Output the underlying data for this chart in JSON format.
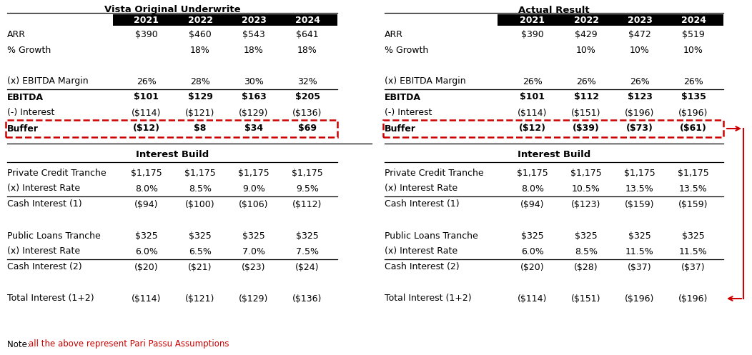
{
  "left_title": "Vista Original Underwrite",
  "right_title": "Actual Result",
  "years": [
    "2021",
    "2022",
    "2023",
    "2024"
  ],
  "left_top_rows": [
    {
      "label": "ARR",
      "bold": false,
      "values": [
        "$390",
        "$460",
        "$543",
        "$641"
      ],
      "box": false,
      "line_above": false
    },
    {
      "label": "% Growth",
      "bold": false,
      "values": [
        "",
        "18%",
        "18%",
        "18%"
      ],
      "box": false,
      "line_above": false
    },
    {
      "label": "",
      "bold": false,
      "values": [
        "",
        "",
        "",
        ""
      ],
      "box": false,
      "line_above": false
    },
    {
      "label": "(x) EBITDA Margin",
      "bold": false,
      "values": [
        "26%",
        "28%",
        "30%",
        "32%"
      ],
      "box": false,
      "line_above": false
    },
    {
      "label": "EBITDA",
      "bold": true,
      "values": [
        "$101",
        "$129",
        "$163",
        "$205"
      ],
      "box": false,
      "line_above": true
    },
    {
      "label": "(-) Interest",
      "bold": false,
      "values": [
        "($114)",
        "($121)",
        "($129)",
        "($136)"
      ],
      "box": false,
      "line_above": false
    },
    {
      "label": "Buffer",
      "bold": true,
      "values": [
        "($12)",
        "$8",
        "$34",
        "$69"
      ],
      "box": true,
      "line_above": false
    }
  ],
  "right_top_rows": [
    {
      "label": "ARR",
      "bold": false,
      "values": [
        "$390",
        "$429",
        "$472",
        "$519"
      ],
      "box": false,
      "line_above": false
    },
    {
      "label": "% Growth",
      "bold": false,
      "values": [
        "",
        "10%",
        "10%",
        "10%"
      ],
      "box": false,
      "line_above": false
    },
    {
      "label": "",
      "bold": false,
      "values": [
        "",
        "",
        "",
        ""
      ],
      "box": false,
      "line_above": false
    },
    {
      "label": "(x) EBITDA Margin",
      "bold": false,
      "values": [
        "26%",
        "26%",
        "26%",
        "26%"
      ],
      "box": false,
      "line_above": false
    },
    {
      "label": "EBITDA",
      "bold": true,
      "values": [
        "$101",
        "$112",
        "$123",
        "$135"
      ],
      "box": false,
      "line_above": true
    },
    {
      "label": "(-) Interest",
      "bold": false,
      "values": [
        "($114)",
        "($151)",
        "($196)",
        "($196)"
      ],
      "box": false,
      "line_above": false
    },
    {
      "label": "Buffer",
      "bold": true,
      "values": [
        "($12)",
        "($39)",
        "($73)",
        "($61)"
      ],
      "box": true,
      "line_above": false
    }
  ],
  "left_bottom_title": "Interest Build",
  "right_bottom_title": "Interest Build",
  "left_bottom_rows": [
    {
      "label": "Private Credit Tranche",
      "bold": false,
      "values": [
        "$1,175",
        "$1,175",
        "$1,175",
        "$1,175"
      ],
      "line_above": false
    },
    {
      "label": "(x) Interest Rate",
      "bold": false,
      "values": [
        "8.0%",
        "8.5%",
        "9.0%",
        "9.5%"
      ],
      "line_above": false
    },
    {
      "label": "Cash Interest (1)",
      "bold": false,
      "values": [
        "($94)",
        "($100)",
        "($106)",
        "($112)"
      ],
      "line_above": true
    },
    {
      "label": "",
      "bold": false,
      "values": [
        "",
        "",
        "",
        ""
      ],
      "line_above": false
    },
    {
      "label": "Public Loans Tranche",
      "bold": false,
      "values": [
        "$325",
        "$325",
        "$325",
        "$325"
      ],
      "line_above": false
    },
    {
      "label": "(x) Interest Rate",
      "bold": false,
      "values": [
        "6.0%",
        "6.5%",
        "7.0%",
        "7.5%"
      ],
      "line_above": false
    },
    {
      "label": "Cash Interest (2)",
      "bold": false,
      "values": [
        "($20)",
        "($21)",
        "($23)",
        "($24)"
      ],
      "line_above": true
    },
    {
      "label": "",
      "bold": false,
      "values": [
        "",
        "",
        "",
        ""
      ],
      "line_above": false
    },
    {
      "label": "Total Interest (1+2)",
      "bold": false,
      "values": [
        "($114)",
        "($121)",
        "($129)",
        "($136)"
      ],
      "line_above": false
    }
  ],
  "right_bottom_rows": [
    {
      "label": "Private Credit Tranche",
      "bold": false,
      "values": [
        "$1,175",
        "$1,175",
        "$1,175",
        "$1,175"
      ],
      "line_above": false
    },
    {
      "label": "(x) Interest Rate",
      "bold": false,
      "values": [
        "8.0%",
        "10.5%",
        "13.5%",
        "13.5%"
      ],
      "line_above": false
    },
    {
      "label": "Cash Interest (1)",
      "bold": false,
      "values": [
        "($94)",
        "($123)",
        "($159)",
        "($159)"
      ],
      "line_above": true
    },
    {
      "label": "",
      "bold": false,
      "values": [
        "",
        "",
        "",
        ""
      ],
      "line_above": false
    },
    {
      "label": "Public Loans Tranche",
      "bold": false,
      "values": [
        "$325",
        "$325",
        "$325",
        "$325"
      ],
      "line_above": false
    },
    {
      "label": "(x) Interest Rate",
      "bold": false,
      "values": [
        "6.0%",
        "8.5%",
        "11.5%",
        "11.5%"
      ],
      "line_above": false
    },
    {
      "label": "Cash Interest (2)",
      "bold": false,
      "values": [
        "($20)",
        "($28)",
        "($37)",
        "($37)"
      ],
      "line_above": true
    },
    {
      "label": "",
      "bold": false,
      "values": [
        "",
        "",
        "",
        ""
      ],
      "line_above": false
    },
    {
      "label": "Total Interest (1+2)",
      "bold": false,
      "values": [
        "($114)",
        "($151)",
        "($196)",
        "($196)"
      ],
      "line_above": false
    }
  ],
  "note_black": "Note: ",
  "note_red": "all the above represent Pari Passu Assumptions",
  "red_color": "#cc0000",
  "fig_width": 10.52,
  "fig_height": 4.97
}
